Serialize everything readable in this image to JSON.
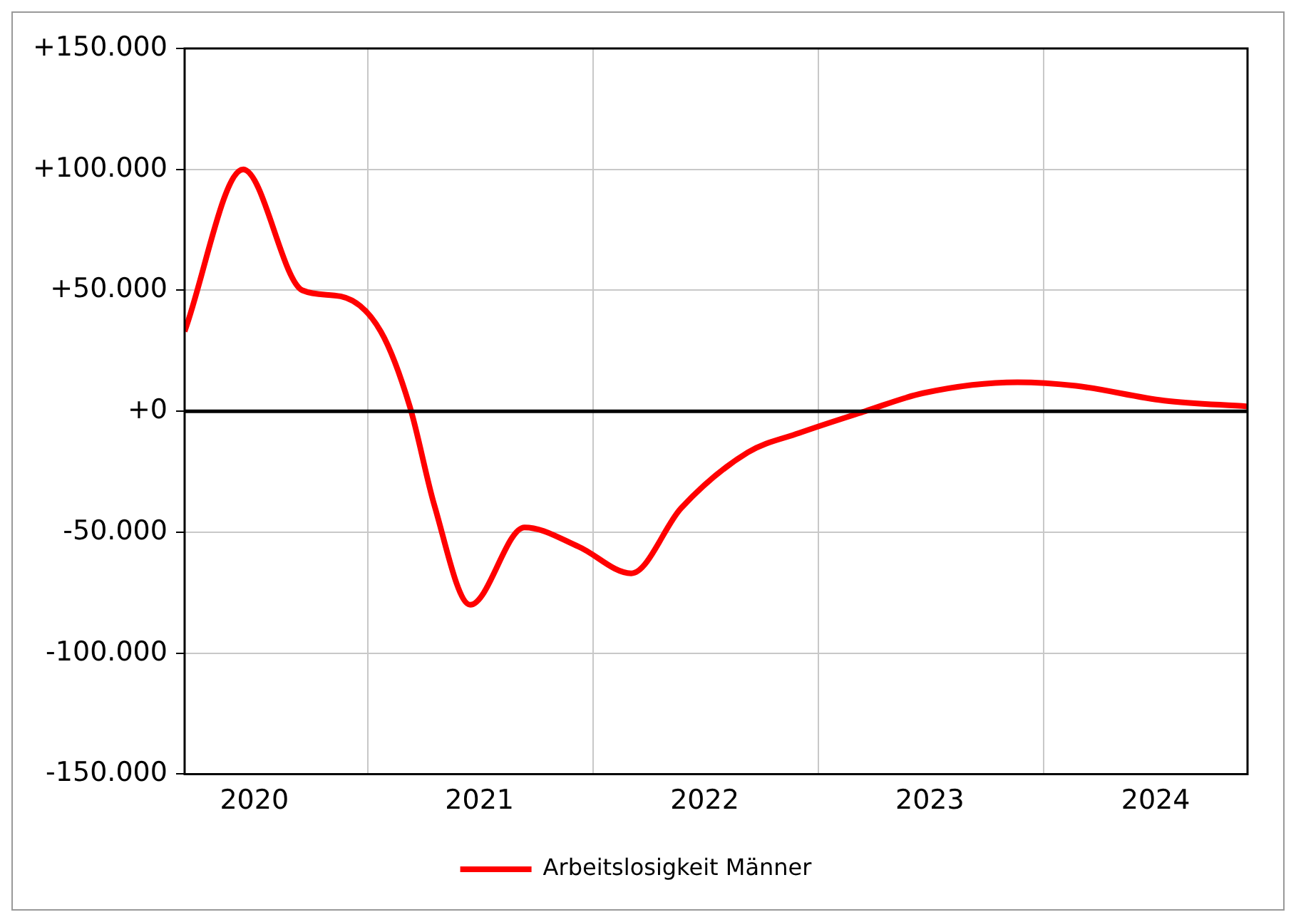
{
  "chart_data": {
    "type": "line",
    "x": [
      "2020-03-10",
      "2020-06-13",
      "2020-09-17",
      "2020-11-18",
      "2021-01-22",
      "2021-03-10",
      "2021-04-19",
      "2021-06-16",
      "2021-09-12",
      "2021-12-09",
      "2022-03-04",
      "2022-05-24",
      "2022-09-09",
      "2022-12-01",
      "2023-03-18",
      "2023-06-20",
      "2023-11-20",
      "2024-02-23",
      "2024-07-15",
      "2024-11-27"
    ],
    "series": [
      {
        "name": "Arbeitslosigkeit Männer",
        "color": "#ff0000",
        "values": [
          33000,
          100000,
          50000,
          47500,
          33000,
          2000,
          -39000,
          -80000,
          -48000,
          -56000,
          -67000,
          -40000,
          -17000,
          -9000,
          0,
          7500,
          12000,
          10500,
          4400,
          2000
        ]
      }
    ],
    "xlim": [
      "2020-03-10",
      "2024-11-27"
    ],
    "xticks": [
      {
        "value": "2020-07-01",
        "label": "2020"
      },
      {
        "value": "2021-01-01",
        "label": null
      },
      {
        "value": "2021-07-01",
        "label": "2021"
      },
      {
        "value": "2022-01-01",
        "label": null
      },
      {
        "value": "2022-07-01",
        "label": "2022"
      },
      {
        "value": "2023-01-01",
        "label": null
      },
      {
        "value": "2023-07-01",
        "label": "2023"
      },
      {
        "value": "2024-01-01",
        "label": null
      },
      {
        "value": "2024-07-01",
        "label": "2024"
      }
    ],
    "ylim": [
      -150000,
      150000
    ],
    "yticks": [
      {
        "value": -150000,
        "label": "-150.000"
      },
      {
        "value": -100000,
        "label": "-100.000"
      },
      {
        "value": -50000,
        "label": "-50.000"
      },
      {
        "value": 0,
        "label": "+0"
      },
      {
        "value": 50000,
        "label": "+50.000"
      },
      {
        "value": 100000,
        "label": "+100.000"
      },
      {
        "value": 150000,
        "label": "+150.000"
      }
    ],
    "ref_lines": [
      {
        "axis": "y",
        "value": 0,
        "color": "#000000"
      }
    ],
    "grid": true,
    "legend": "bottom",
    "marker": "none",
    "line_style": "solid"
  }
}
